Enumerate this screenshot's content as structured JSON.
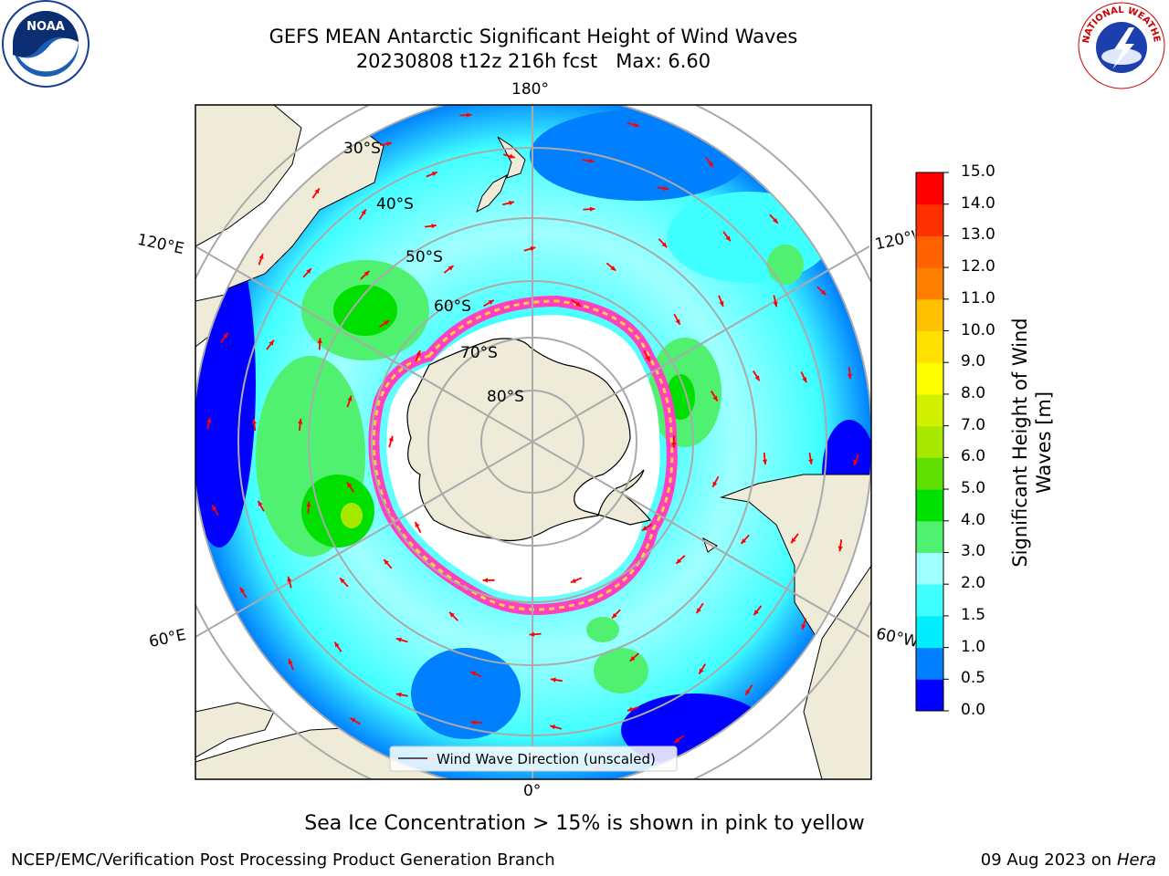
{
  "title": {
    "line1": "GEFS MEAN Antarctic Significant Height of Wind Waves",
    "line2": "20230808 t12z 216h fcst   Max: 6.60"
  },
  "logos": {
    "noaa_text": "NOAA",
    "nws_text": "NATIONAL WEATHER SERVICE"
  },
  "map": {
    "projection": "south-polar-stereographic",
    "lon_labels": {
      "top": "180°",
      "bottom": "0°",
      "left_upper": "120°E",
      "left_lower": "60°E",
      "right_upper": "120°W",
      "right_lower": "60°W"
    },
    "lat_labels": [
      "30°S",
      "40°S",
      "50°S",
      "60°S",
      "70°S",
      "80°S"
    ],
    "legend_label": "Wind Wave Direction (unscaled)",
    "colors": {
      "land": "#eeecd8",
      "graticule": "#aaaaaa",
      "arrow": "#ff0000",
      "coast": "#000000"
    }
  },
  "colorbar": {
    "title_line1": "Significant Height of Wind",
    "title_line2": "Waves [m]",
    "ticks": [
      "0.0",
      "0.5",
      "1.0",
      "1.5",
      "2.0",
      "3.0",
      "4.0",
      "5.0",
      "6.0",
      "7.0",
      "8.0",
      "9.0",
      "10.0",
      "11.0",
      "12.0",
      "13.0",
      "14.0",
      "15.0"
    ],
    "colors": [
      "#0000ff",
      "#0080ff",
      "#00eeff",
      "#40ffff",
      "#a0ffff",
      "#50f070",
      "#00e000",
      "#60e000",
      "#a8e800",
      "#d0f000",
      "#ffff00",
      "#ffe000",
      "#ffc000",
      "#ff8000",
      "#ff6000",
      "#ff3000",
      "#ff0000"
    ]
  },
  "note": "Sea Ice Concentration > 15% is shown in pink to yellow",
  "footer": {
    "left": "NCEP/EMC/Verification Post Processing Product Generation Branch",
    "right_date": "09 Aug 2023 on",
    "right_machine": "Hera"
  }
}
